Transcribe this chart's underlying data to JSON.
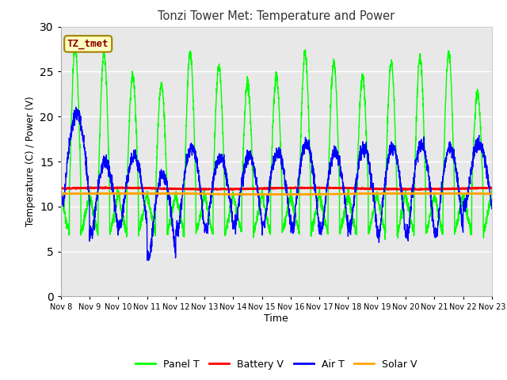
{
  "title": "Tonzi Tower Met: Temperature and Power",
  "xlabel": "Time",
  "ylabel": "Temperature (C) / Power (V)",
  "ylim": [
    0,
    30
  ],
  "yticks": [
    0,
    5,
    10,
    15,
    20,
    25,
    30
  ],
  "xtick_labels": [
    "Nov 8",
    "Nov 9",
    "Nov 10",
    "Nov 11",
    "Nov 12",
    "Nov 13",
    "Nov 14",
    "Nov 15",
    "Nov 16",
    "Nov 17",
    "Nov 18",
    "Nov 19",
    "Nov 20",
    "Nov 21",
    "Nov 22",
    "Nov 23"
  ],
  "plot_bg_color": "#e8e8e8",
  "fig_bg_color": "#ffffff",
  "annotation_text": "TZ_tmet",
  "annotation_color": "#8b0000",
  "annotation_bg": "#ffffc0",
  "annotation_edge": "#a08000",
  "legend_labels": [
    "Panel T",
    "Battery V",
    "Air T",
    "Solar V"
  ],
  "legend_colors": [
    "#00ff00",
    "#ff0000",
    "#0000ff",
    "#ffa500"
  ],
  "n_points": 3000
}
